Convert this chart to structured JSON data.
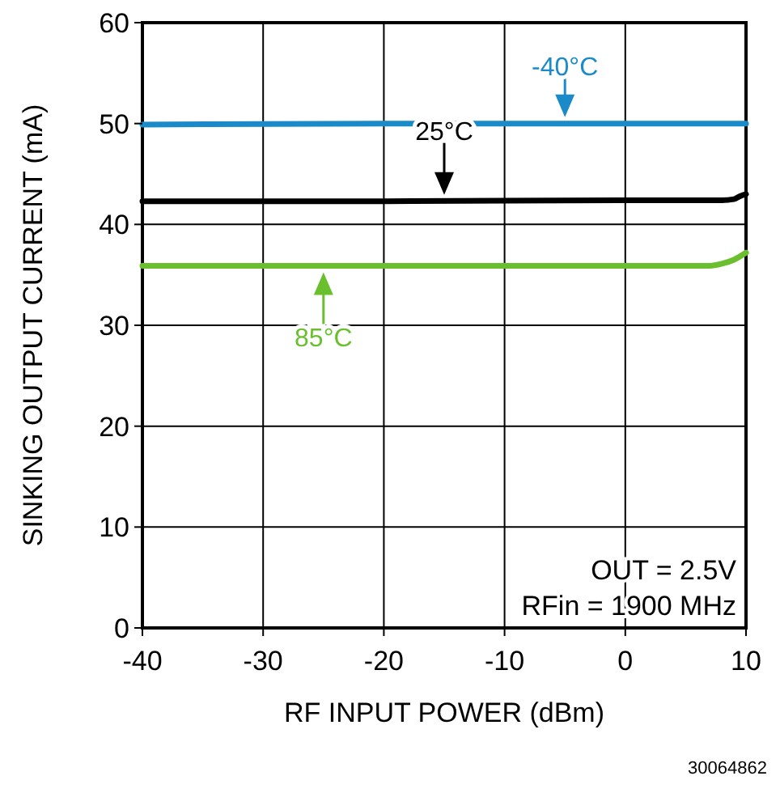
{
  "chart_data": {
    "type": "line",
    "xlabel": "RF INPUT POWER (dBm)",
    "ylabel": "SINKING OUTPUT CURRENT (mA)",
    "xlim": [
      -40,
      10
    ],
    "xticks": [
      -40,
      -30,
      -20,
      -10,
      0,
      10
    ],
    "ylim": [
      0,
      60
    ],
    "yticks": [
      0,
      10,
      20,
      30,
      40,
      50,
      60
    ],
    "grid": true,
    "marker": "none",
    "line_style": "solid",
    "series": [
      {
        "color": "#1a8ac8",
        "x": [
          -40,
          -20,
          0,
          10
        ],
        "values": [
          49.9,
          50,
          50,
          50
        ]
      },
      {
        "color": "#000000",
        "x": [
          -40,
          -20,
          0,
          8,
          9,
          9.5,
          10
        ],
        "values": [
          42.3,
          42.3,
          42.4,
          42.4,
          42.5,
          42.8,
          43
        ]
      },
      {
        "color": "#6abf2e",
        "x": [
          -40,
          0,
          7,
          8,
          9,
          10
        ],
        "values": [
          35.9,
          35.9,
          35.9,
          36.1,
          36.5,
          37.2
        ]
      }
    ],
    "annotations": [
      {
        "text": "-40°C",
        "x": -5,
        "y": 50
      },
      {
        "text": "25°C",
        "x": -15,
        "y": 42.3
      },
      {
        "text": "85°C",
        "x": -25,
        "y": 35.9
      },
      "OUT = 2.5V",
      "RFin = 1900 MHz",
      "30064862"
    ]
  }
}
